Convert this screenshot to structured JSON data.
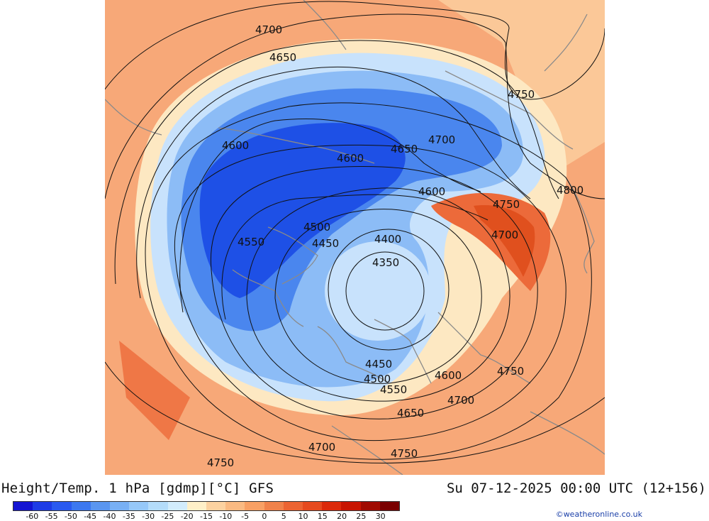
{
  "title": "Height/Temp. 1 hPa [gdmp][°C] GFS",
  "valid_time": "Su 07-12-2025 00:00 UTC (12+156)",
  "credit": "©weatheronline.co.uk",
  "colorbar": {
    "ticks": [
      "-60",
      "-55",
      "-50",
      "-45",
      "-40",
      "-35",
      "-30",
      "-25",
      "-20",
      "-15",
      "-10",
      "-5",
      "0",
      "5",
      "10",
      "15",
      "20",
      "25",
      "30"
    ],
    "colors": [
      "#1414d2",
      "#1e3ce6",
      "#2a5af0",
      "#3c78f0",
      "#5a96f0",
      "#78b0f4",
      "#96c8f8",
      "#b4dcfa",
      "#d2ecfc",
      "#fff0c8",
      "#fcd2a0",
      "#faba82",
      "#f8a064",
      "#f0824a",
      "#ec6432",
      "#e64a1e",
      "#dc2a0a",
      "#c81400",
      "#a00a00",
      "#7a0000"
    ]
  },
  "map_colors": {
    "warm_background": "#f7a878",
    "very_cold": "#1e50e6",
    "cold": "#4a86ee",
    "cool": "#8cbcf6",
    "cold_edge": "#c8e2fc",
    "neutral": "#fde8c2",
    "warm_band": "#ec6a3a",
    "hot_band": "#e0501e",
    "contour": "#111111",
    "coastline": "#8a8a8a"
  },
  "contour_labels": [
    {
      "text": "4700"
    },
    {
      "text": "4650"
    },
    {
      "text": "4750"
    },
    {
      "text": "4600"
    },
    {
      "text": "4600"
    },
    {
      "text": "4650"
    },
    {
      "text": "4700"
    },
    {
      "text": "4600"
    },
    {
      "text": "4800"
    },
    {
      "text": "4750"
    },
    {
      "text": "4700"
    },
    {
      "text": "4500"
    },
    {
      "text": "4550"
    },
    {
      "text": "4450"
    },
    {
      "text": "4400"
    },
    {
      "text": "4350"
    },
    {
      "text": "4450"
    },
    {
      "text": "4500"
    },
    {
      "text": "4600"
    },
    {
      "text": "4750"
    },
    {
      "text": "4550"
    },
    {
      "text": "4700"
    },
    {
      "text": "4650"
    },
    {
      "text": "4700"
    },
    {
      "text": "4750"
    },
    {
      "text": "4750"
    }
  ]
}
